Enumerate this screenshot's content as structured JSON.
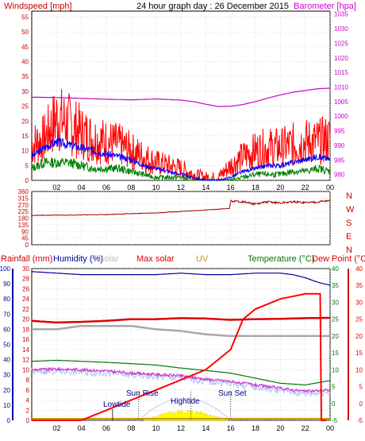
{
  "header": {
    "title": "24 hour graph day : 26 December 2015",
    "wind_label": "Windspeed [mph]",
    "baro_label": "Barometer [hpa]"
  },
  "legend": {
    "rainfall": "Rainfall (mm)",
    "humidity": "Humidity (%)",
    "solar": "Solar",
    "max_solar": "Max solar",
    "uv": "UV",
    "temperature": "Temperature (°C)",
    "dew_point": "Dew Point (°C)"
  },
  "annotations": {
    "lowtide": "Lowtide",
    "sunrise": "Sun Rise",
    "hightide": "Hightide",
    "sunset": "Sun Set"
  },
  "colors": {
    "wind_axis": "#cc0000",
    "baro_axis": "#cc00cc",
    "gust": "#ff0000",
    "avg": "#0000ff",
    "low": "#008000",
    "baro": "#cc00cc",
    "dir": "#aa0000",
    "humidity": "#000099",
    "temp": "#007700",
    "maxsolar": "#dd0000",
    "rain": "#ff0000",
    "grid": "#c8c8c8",
    "temp_axis": "#007700",
    "dew_axis": "#dd0000",
    "uv": "#cc9900",
    "solar": "#ffff00"
  },
  "chart_data": [
    {
      "type": "line",
      "title": "24 hour graph day : 26 December 2015",
      "x_ticks": [
        "02",
        "04",
        "06",
        "08",
        "10",
        "12",
        "14",
        "16",
        "18",
        "20",
        "22",
        "00"
      ],
      "x_range": [
        0,
        24
      ],
      "left_axis": {
        "label": "Windspeed [mph]",
        "ticks": [
          0,
          5,
          10,
          15,
          20,
          25,
          30,
          35,
          40,
          45,
          50,
          55
        ],
        "range": [
          0,
          57
        ]
      },
      "right_axis": {
        "label": "Barometer [hpa]",
        "ticks": [
          980,
          985,
          990,
          995,
          1000,
          1005,
          1010,
          1015,
          1020,
          1025,
          1030,
          1035
        ],
        "range": [
          978,
          1036
        ]
      },
      "series": [
        {
          "name": "gust",
          "x": [
            0,
            1,
            2,
            3,
            4,
            5,
            6,
            7,
            8,
            9,
            10,
            11,
            12,
            13,
            14,
            15,
            16,
            17,
            18,
            19,
            20,
            21,
            22,
            23,
            24
          ],
          "values": [
            12,
            14,
            21,
            19,
            16,
            14,
            13,
            12,
            10,
            8,
            6,
            5,
            4,
            2,
            1,
            1,
            5,
            8,
            10,
            11,
            11,
            12,
            13,
            13,
            14
          ]
        },
        {
          "name": "average",
          "x": [
            0,
            1,
            2,
            3,
            4,
            5,
            6,
            7,
            8,
            9,
            10,
            11,
            12,
            13,
            14,
            15,
            16,
            17,
            18,
            19,
            20,
            21,
            22,
            23,
            24
          ],
          "values": [
            8,
            11,
            13,
            12,
            11,
            10,
            9,
            8,
            7,
            5,
            4,
            3,
            2,
            1,
            0,
            0,
            1,
            3,
            4,
            5,
            5,
            6,
            7,
            8,
            7
          ]
        },
        {
          "name": "low",
          "x": [
            0,
            1,
            2,
            3,
            4,
            5,
            6,
            7,
            8,
            9,
            10,
            11,
            12,
            13,
            14,
            15,
            16,
            17,
            18,
            19,
            20,
            21,
            22,
            23,
            24
          ],
          "values": [
            4,
            6,
            6,
            6,
            5,
            4,
            4,
            4,
            3,
            2,
            1,
            1,
            1,
            0,
            0,
            0,
            0,
            1,
            2,
            2,
            2,
            3,
            3,
            4,
            3
          ]
        },
        {
          "name": "barometer",
          "axis": "right",
          "x": [
            0,
            2,
            4,
            6,
            8,
            10,
            12,
            13,
            14,
            15,
            16,
            17,
            18,
            19,
            20,
            21,
            22,
            23,
            24
          ],
          "values": [
            1006.5,
            1006.4,
            1006.1,
            1005.8,
            1005.6,
            1005.9,
            1005.5,
            1005.0,
            1004.1,
            1003.3,
            1003.4,
            1004.0,
            1005.0,
            1006.2,
            1007.3,
            1008.2,
            1008.8,
            1009.4,
            1009.6
          ]
        }
      ]
    },
    {
      "type": "line",
      "x_ticks": [
        "02",
        "04",
        "06",
        "08",
        "10",
        "12",
        "14",
        "16",
        "18",
        "20",
        "22",
        "00"
      ],
      "x_range": [
        0,
        24
      ],
      "left_axis": {
        "label": "",
        "ticks": [
          0,
          45,
          90,
          135,
          180,
          225,
          270,
          315,
          360
        ],
        "range": [
          0,
          360
        ]
      },
      "right_axis": {
        "label": "",
        "ticks": [
          "N",
          "W",
          "S",
          "E",
          "N"
        ]
      },
      "series": [
        {
          "name": "wind direction",
          "x": [
            0,
            2,
            4,
            6,
            8,
            10,
            12,
            13.5,
            14,
            15,
            15.9,
            16,
            17,
            18,
            19,
            20,
            21,
            22,
            23,
            24
          ],
          "values": [
            198,
            200,
            202,
            204,
            210,
            215,
            225,
            232,
            235,
            240,
            245,
            295,
            290,
            275,
            290,
            282,
            290,
            285,
            290,
            300
          ]
        }
      ]
    },
    {
      "type": "line",
      "x_ticks": [
        "02",
        "04",
        "06",
        "08",
        "10",
        "12",
        "14",
        "16",
        "18",
        "20",
        "22",
        "00"
      ],
      "x_range": [
        0,
        24
      ],
      "axes": {
        "humidity": {
          "ticks": [
            0,
            10,
            20,
            30,
            40,
            50,
            60,
            70,
            80,
            90,
            100
          ],
          "range": [
            0,
            100
          ]
        },
        "rainfall": {
          "ticks": [
            0,
            2,
            4,
            6,
            8,
            10,
            12,
            14,
            16,
            18,
            20,
            22,
            24,
            26,
            28,
            30
          ],
          "range": [
            0,
            30
          ]
        },
        "temperature": {
          "ticks": [
            -5,
            0,
            5,
            10,
            15,
            20,
            25,
            30,
            35,
            40
          ],
          "range": [
            -5,
            40
          ]
        },
        "dew_point": {
          "ticks": [
            -5,
            0,
            5,
            10,
            15,
            20,
            25,
            30,
            35,
            40
          ],
          "range": [
            -5,
            40
          ]
        }
      },
      "series": [
        {
          "name": "humidity",
          "axis": "humidity",
          "x": [
            0,
            2,
            4,
            6,
            8,
            10,
            12,
            14,
            16,
            18,
            20,
            21,
            22,
            23,
            24
          ],
          "values": [
            98,
            97,
            96,
            96,
            96,
            96,
            97,
            96,
            96,
            97,
            97,
            96,
            94,
            91,
            89
          ]
        },
        {
          "name": "max solar",
          "axis": "temperature",
          "x": [
            0,
            2,
            4,
            6,
            8,
            10,
            12,
            14,
            16,
            18,
            20,
            22,
            24
          ],
          "values": [
            24.5,
            24,
            24.2,
            24.5,
            25,
            25,
            25.3,
            25.2,
            24.8,
            25,
            25.1,
            25.3,
            25.4
          ]
        },
        {
          "name": "solar",
          "axis": "temperature",
          "x": [
            0,
            2,
            4,
            6,
            8,
            10,
            12,
            14,
            16,
            18,
            20,
            22,
            24
          ],
          "values": [
            22,
            22,
            23,
            23,
            23,
            22,
            21.5,
            20.5,
            20,
            20,
            20,
            20,
            20
          ]
        },
        {
          "name": "temperature",
          "axis": "temperature",
          "x": [
            0,
            2,
            4,
            6,
            8,
            10,
            12,
            14,
            16,
            18,
            20,
            22,
            24
          ],
          "values": [
            12.5,
            12.8,
            12.5,
            12.2,
            11.8,
            11.4,
            10.5,
            9.8,
            9,
            7.5,
            6,
            5.5,
            6.8
          ]
        },
        {
          "name": "dew point",
          "axis": "dew_point",
          "x": [
            0,
            2,
            4,
            6,
            8,
            10,
            12,
            14,
            16,
            18,
            20,
            22,
            24
          ],
          "values": [
            10,
            10.2,
            10,
            9.6,
            9,
            8.6,
            8.2,
            7.2,
            6.5,
            5.5,
            4.5,
            3.6,
            4
          ]
        },
        {
          "name": "rainfall",
          "axis": "rainfall",
          "x": [
            0,
            4,
            5,
            6,
            8,
            10,
            12,
            14,
            15,
            16,
            16.5,
            17,
            18,
            20,
            22,
            23.2,
            23.3,
            23.7
          ],
          "values": [
            0,
            0,
            1,
            2,
            4,
            6,
            8,
            10,
            12,
            14,
            17,
            20,
            22,
            24,
            25,
            25,
            0,
            0
          ]
        },
        {
          "name": "uv",
          "axis": "rainfall",
          "x": [
            0,
            24
          ],
          "values": [
            0,
            0
          ]
        }
      ],
      "events": [
        {
          "label": "Lowtide",
          "x": 6.5
        },
        {
          "label": "Sun Rise",
          "x": 8.6
        },
        {
          "label": "Hightide",
          "x": 12.8
        },
        {
          "label": "Sun Set",
          "x": 16
        }
      ]
    }
  ]
}
